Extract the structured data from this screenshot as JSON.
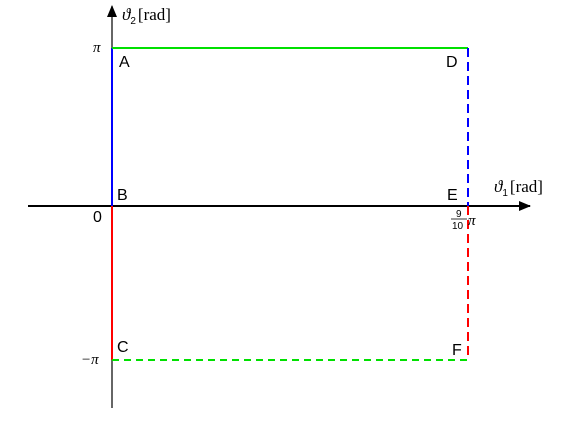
{
  "axes": {
    "x_label_symbol": "ϑ",
    "x_label_sub": "1",
    "x_label_unit": "[rad]",
    "y_label_symbol": "ϑ",
    "y_label_sub": "2",
    "y_label_unit": "[rad]"
  },
  "ticks": {
    "origin": "0",
    "y_pi": "π",
    "y_minus_pi": "−π",
    "x_frac_num": "9",
    "x_frac_den": "10",
    "x_frac_pi": "π"
  },
  "points": {
    "A": "A",
    "B": "B",
    "C": "C",
    "D": "D",
    "E": "E",
    "F": "F"
  },
  "colors": {
    "green": "#00e000",
    "blue": "#0000ff",
    "red": "#ff0000",
    "axis": "#000000"
  }
}
